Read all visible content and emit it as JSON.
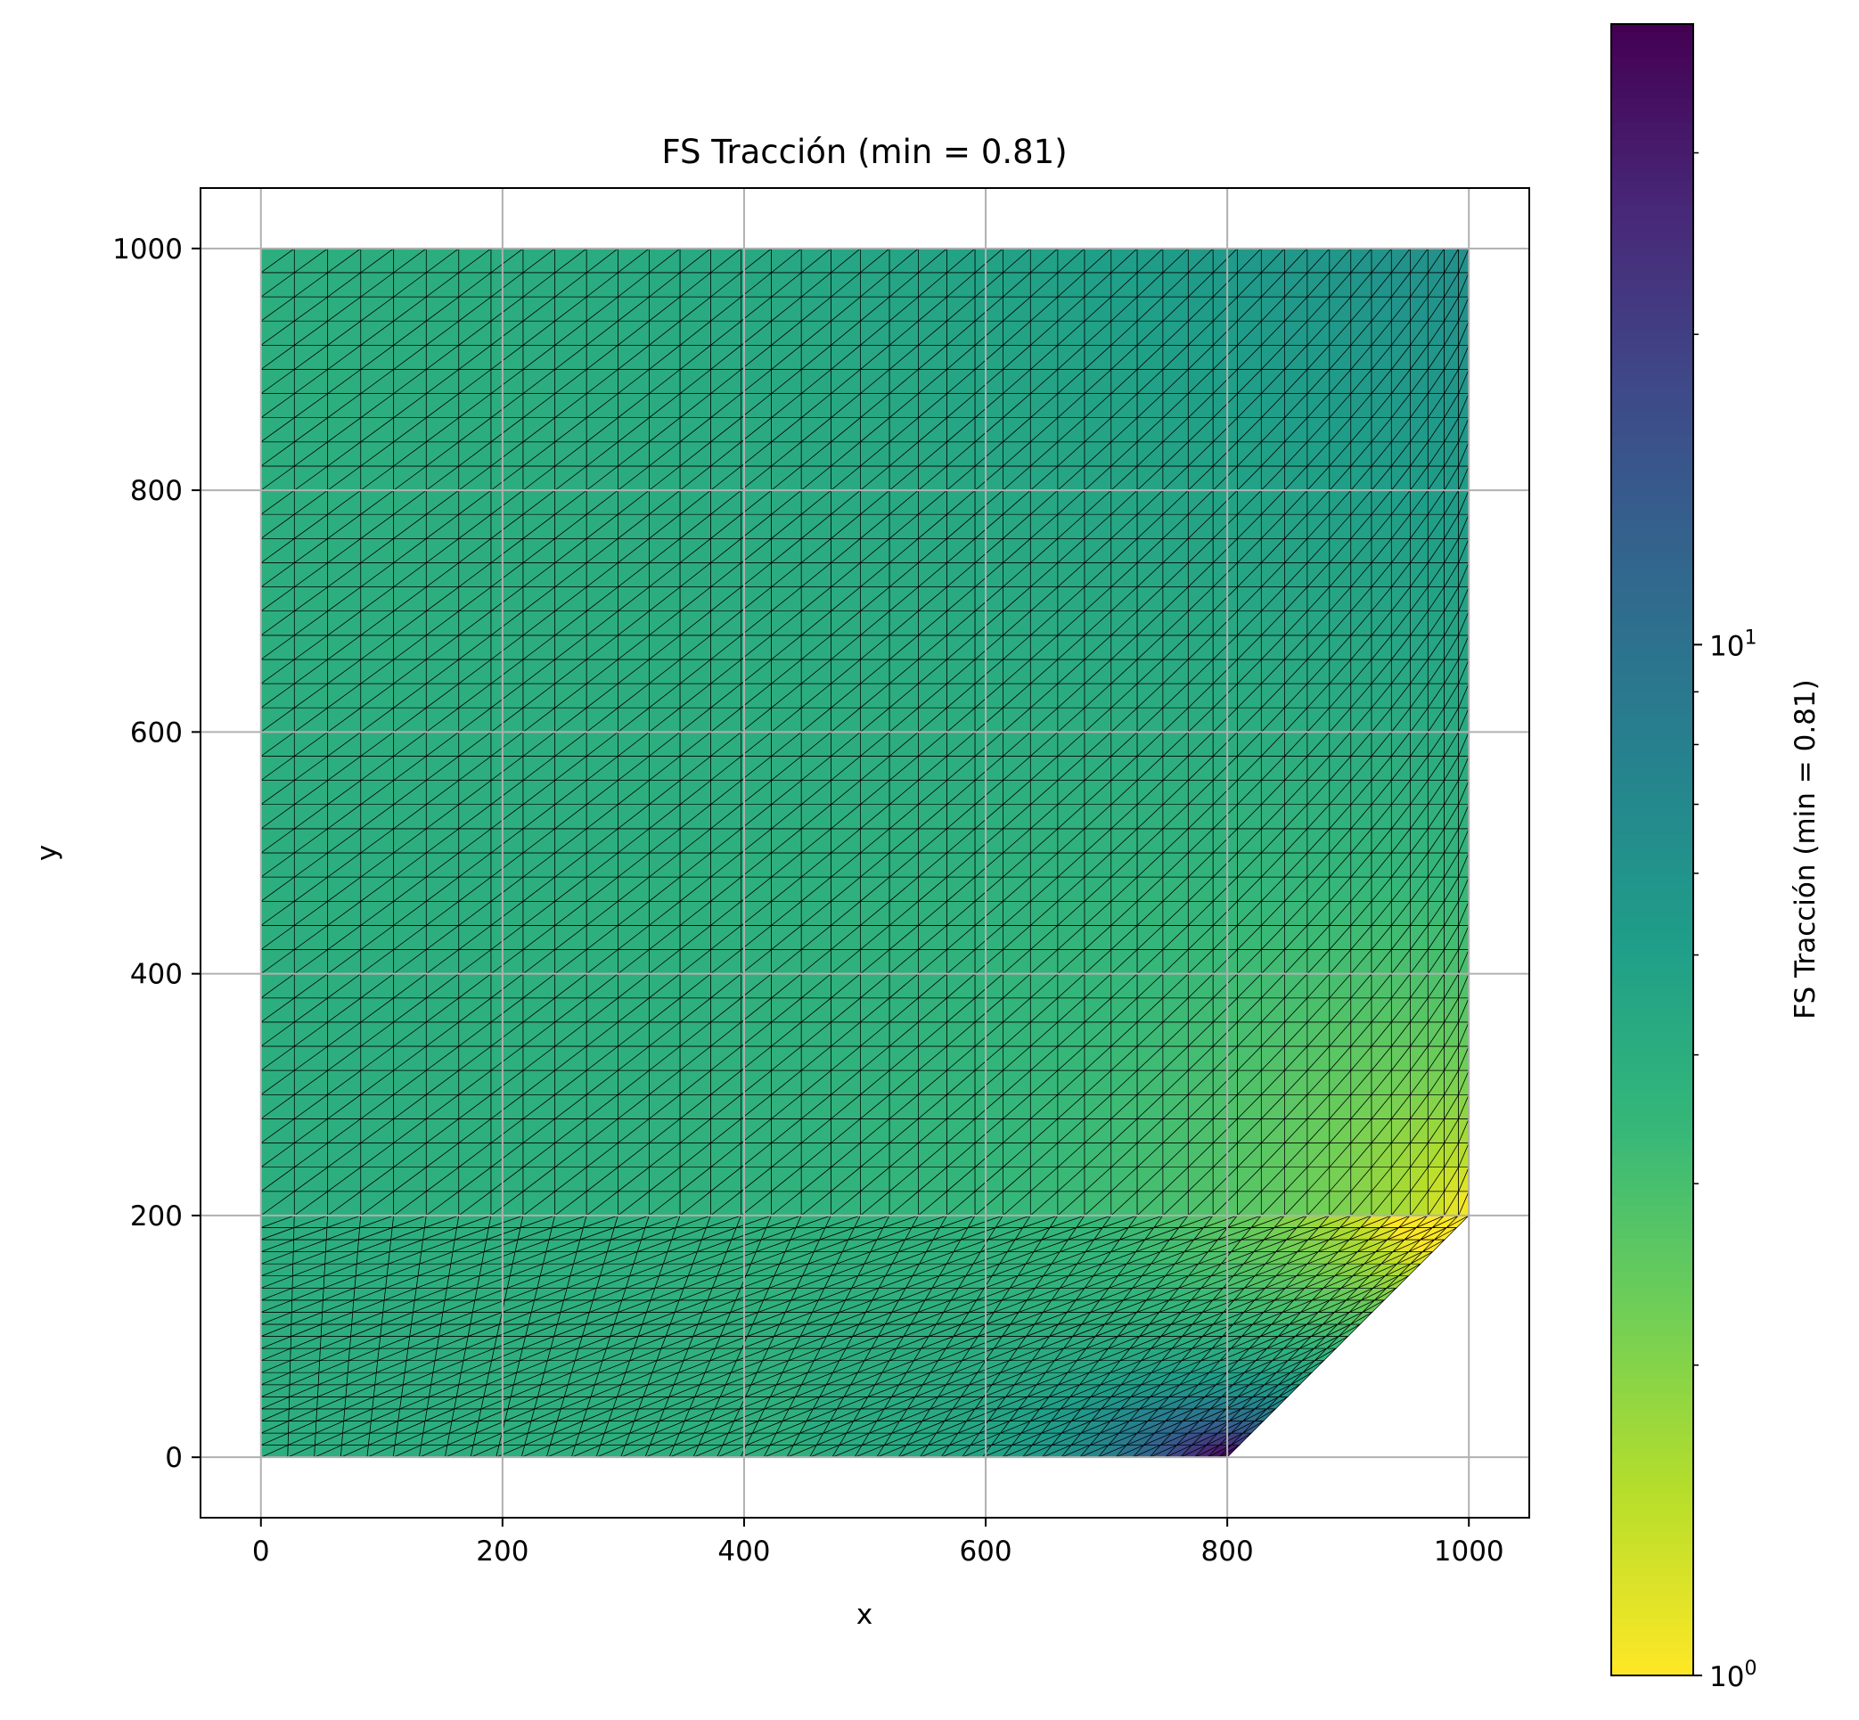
{
  "chart_data": {
    "type": "heatmap",
    "title": "FS Tracción (min = 0.81)",
    "xlabel": "x",
    "ylabel": "y",
    "xlim": [
      -50,
      1050
    ],
    "ylim": [
      -50,
      1050
    ],
    "xticks": [
      0,
      200,
      400,
      600,
      800,
      1000
    ],
    "yticks": [
      0,
      200,
      400,
      600,
      800,
      1000
    ],
    "xtick_labels": [
      "0",
      "200",
      "400",
      "600",
      "800",
      "1000"
    ],
    "ytick_labels": [
      "0",
      "200",
      "400",
      "600",
      "800",
      "1000"
    ],
    "grid": true,
    "colormap": "viridis_r",
    "color_scale": "log",
    "colorbar": {
      "label": "FS Tracción (min = 0.81)",
      "range": [
        1,
        40
      ],
      "major_ticks": [
        {
          "value": 1,
          "base": "10",
          "exp": "0"
        },
        {
          "value": 10,
          "base": "10",
          "exp": "1"
        }
      ],
      "minor_ticks": [
        2,
        3,
        4,
        5,
        6,
        7,
        8,
        9,
        20,
        30
      ]
    },
    "domain_outline": [
      [
        0,
        0
      ],
      [
        800,
        0
      ],
      [
        1000,
        200
      ],
      [
        1000,
        1000
      ],
      [
        0,
        1000
      ]
    ],
    "regions": [
      {
        "name": "upper block",
        "x_range": [
          0,
          1000
        ],
        "y_range": [
          200,
          1000
        ],
        "nx": 45,
        "ny": 40
      },
      {
        "name": "lower block",
        "x_range": [
          0,
          1000
        ],
        "y_range": [
          0,
          200
        ],
        "chamfer_from": [
          800,
          0
        ],
        "chamfer_to": [
          1000,
          200
        ],
        "nx": 45,
        "ny": 20
      }
    ],
    "value_field_description_points": [
      {
        "x": 0,
        "y": 1000,
        "fs": 4.0
      },
      {
        "x": 0,
        "y": 0,
        "fs": 4.2
      },
      {
        "x": 1000,
        "y": 1000,
        "fs": 6.5
      },
      {
        "x": 1000,
        "y": 210,
        "fs": 1.1
      },
      {
        "x": 800,
        "y": 400,
        "fs": 2.6
      },
      {
        "x": 600,
        "y": 0,
        "fs": 5.5
      },
      {
        "x": 790,
        "y": 5,
        "fs": 38
      }
    ],
    "min_value": 0.81
  },
  "colors": {
    "grid": "#b0b0b0",
    "mesh_edge": "#000000",
    "axes": "#000000"
  }
}
